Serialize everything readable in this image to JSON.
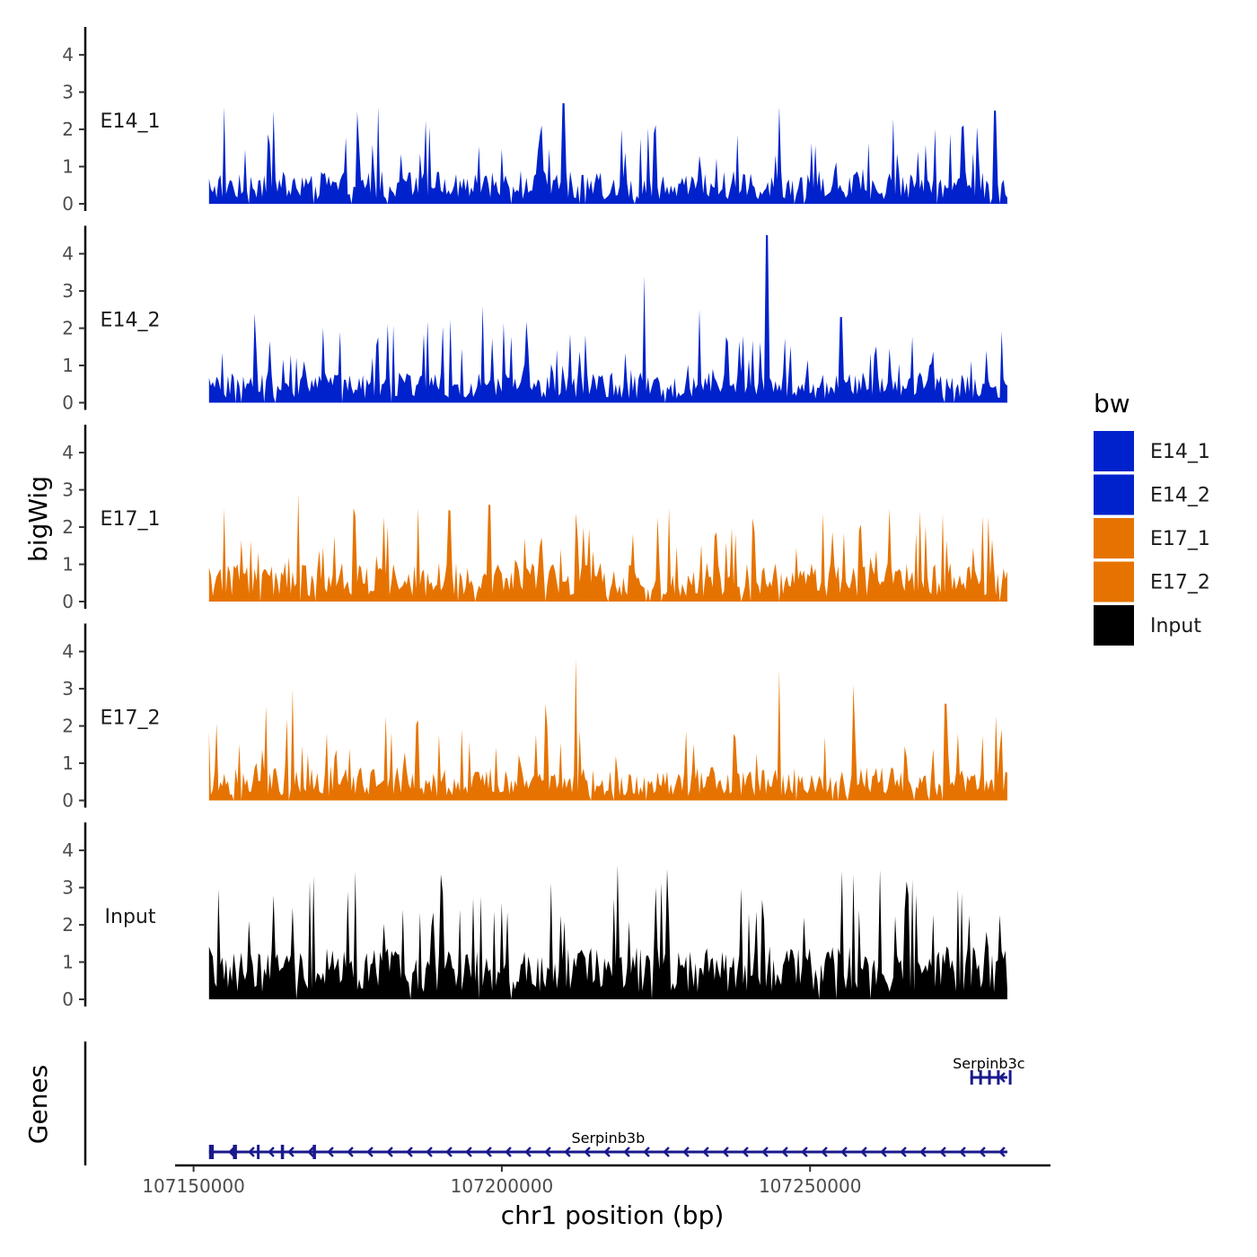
{
  "chart_data": {
    "type": "area",
    "title": "",
    "xlabel": "chr1 position (bp)",
    "ylabel": "bigWig",
    "genes_label": "Genes",
    "xlim": [
      107147000,
      107289000
    ],
    "x_ticks": [
      107150000,
      107200000,
      107250000
    ],
    "x_tick_labels": [
      "107150000",
      "107200000",
      "107250000"
    ],
    "data_range": [
      107152500,
      107282000
    ],
    "ylim": [
      0,
      4.75
    ],
    "y_ticks": [
      0,
      1,
      2,
      3,
      4
    ],
    "y_tick_labels": [
      "0",
      "1",
      "2",
      "3",
      "4"
    ],
    "legend": {
      "title": "bw",
      "position": "right",
      "entries": [
        {
          "label": "E14_1",
          "color": "#0022cc"
        },
        {
          "label": "E14_2",
          "color": "#0022cc"
        },
        {
          "label": "E17_1",
          "color": "#e67300"
        },
        {
          "label": "E17_2",
          "color": "#e67300"
        },
        {
          "label": "Input",
          "color": "#000000"
        }
      ]
    },
    "series": [
      {
        "name": "E14_1",
        "color": "#0022cc",
        "base": 0.6,
        "peaks": [
          [
            107155000,
            2.6
          ],
          [
            107163000,
            2.5
          ],
          [
            107180000,
            2.6
          ],
          [
            107210000,
            2.7
          ],
          [
            107245000,
            2.6
          ],
          [
            107280000,
            2.5
          ]
        ]
      },
      {
        "name": "E14_2",
        "color": "#0022cc",
        "base": 0.55,
        "peaks": [
          [
            107160000,
            2.4
          ],
          [
            107197000,
            2.6
          ],
          [
            107223000,
            3.4
          ],
          [
            107232000,
            2.5
          ],
          [
            107243000,
            4.5
          ],
          [
            107255000,
            2.3
          ]
        ]
      },
      {
        "name": "E17_1",
        "color": "#e67300",
        "base": 0.7,
        "peaks": [
          [
            107155000,
            2.5
          ],
          [
            107167000,
            2.9
          ],
          [
            107198000,
            2.6
          ],
          [
            107227000,
            2.5
          ],
          [
            107263000,
            2.5
          ],
          [
            107278000,
            2.3
          ]
        ]
      },
      {
        "name": "E17_2",
        "color": "#e67300",
        "base": 0.6,
        "peaks": [
          [
            107166000,
            3.0
          ],
          [
            107207000,
            2.6
          ],
          [
            107212000,
            3.8
          ],
          [
            107245000,
            3.5
          ],
          [
            107257000,
            3.1
          ],
          [
            107272000,
            2.6
          ]
        ]
      },
      {
        "name": "Input",
        "color": "#000000",
        "base": 0.95,
        "peaks": [
          [
            107159000,
            2.1
          ],
          [
            107163000,
            2.8
          ],
          [
            107175000,
            2.9
          ],
          [
            107200000,
            2.6
          ],
          [
            107240000,
            2.3
          ],
          [
            107258000,
            2.4
          ]
        ]
      }
    ],
    "genes": [
      {
        "name": "Serpinb3b",
        "start": 107152500,
        "end": 107282000,
        "strand": "-",
        "row": 1,
        "color": "#1a1a8c"
      },
      {
        "name": "Serpinb3c",
        "start": 107276000,
        "end": 107282000,
        "strand": "-",
        "row": 0,
        "color": "#1a1a8c"
      }
    ]
  }
}
